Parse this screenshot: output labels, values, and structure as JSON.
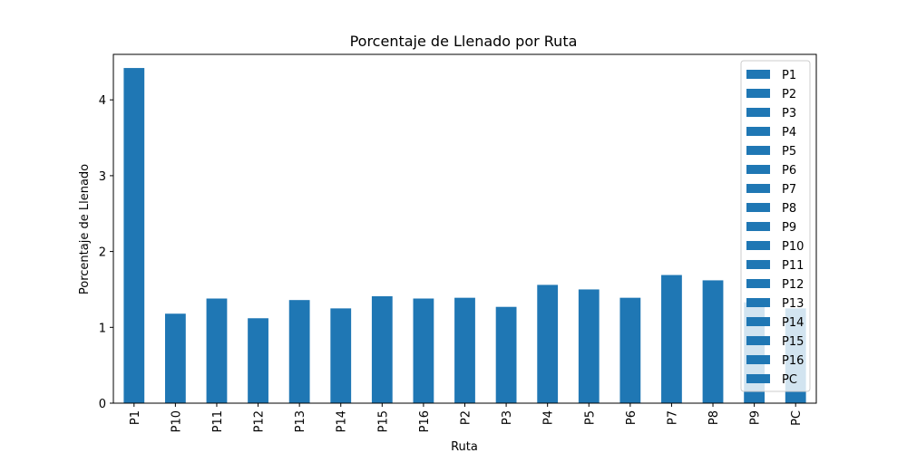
{
  "chart_data": {
    "type": "bar",
    "title": "Porcentaje de Llenado por Ruta",
    "xlabel": "Ruta",
    "ylabel": "Porcentaje de Llenado",
    "categories": [
      "P1",
      "P10",
      "P11",
      "P12",
      "P13",
      "P14",
      "P15",
      "P16",
      "P2",
      "P3",
      "P4",
      "P5",
      "P6",
      "P7",
      "P8",
      "P9",
      "PC"
    ],
    "values": [
      4.42,
      1.18,
      1.38,
      1.12,
      1.36,
      1.25,
      1.41,
      1.38,
      1.39,
      1.27,
      1.56,
      1.5,
      1.39,
      1.69,
      1.62,
      1.33,
      1.25
    ],
    "ylim": [
      0,
      4.6
    ],
    "yticks": [
      0,
      1,
      2,
      3,
      4
    ],
    "legend": {
      "placement": "top-right",
      "entries": [
        "P1",
        "P2",
        "P3",
        "P4",
        "P5",
        "P6",
        "P7",
        "P8",
        "P9",
        "P10",
        "P11",
        "P12",
        "P13",
        "P14",
        "P15",
        "P16",
        "PC"
      ]
    },
    "bar_color": "#1f77b4",
    "grid": false
  }
}
